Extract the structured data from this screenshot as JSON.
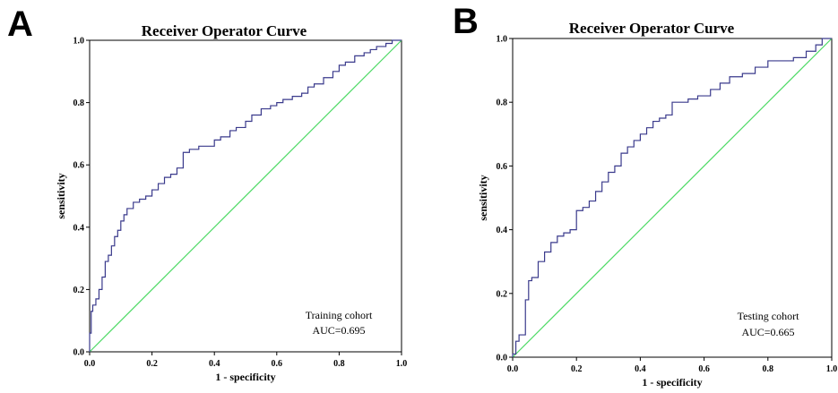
{
  "chart_data": [
    {
      "type": "line",
      "panel": "A",
      "title": "Receiver Operator Curve",
      "xlabel": "1 - specificity",
      "ylabel": "sensitivity",
      "xlim": [
        0,
        1
      ],
      "ylim": [
        0,
        1
      ],
      "xticks": [
        "0.0",
        "0.2",
        "0.4",
        "0.6",
        "0.8",
        "1.0"
      ],
      "yticks": [
        "0.0",
        "0.2",
        "0.4",
        "0.6",
        "0.8",
        "1.0"
      ],
      "annotation": [
        "Training cohort",
        "AUC=0.695"
      ],
      "colors": {
        "roc": "#3a3a8c",
        "reference": "#4cd964"
      },
      "series": [
        {
          "x": [
            0.0,
            0.0,
            0.005,
            0.005,
            0.01,
            0.01,
            0.02,
            0.02,
            0.03,
            0.03,
            0.04,
            0.04,
            0.05,
            0.05,
            0.06,
            0.06,
            0.07,
            0.07,
            0.08,
            0.08,
            0.09,
            0.09,
            0.1,
            0.1,
            0.11,
            0.11,
            0.12,
            0.12,
            0.14,
            0.14,
            0.16,
            0.16,
            0.18,
            0.18,
            0.2,
            0.2,
            0.22,
            0.22,
            0.24,
            0.24,
            0.26,
            0.26,
            0.28,
            0.28,
            0.3,
            0.3,
            0.32,
            0.32,
            0.35,
            0.35,
            0.38,
            0.38,
            0.4,
            0.4,
            0.42,
            0.42,
            0.45,
            0.45,
            0.47,
            0.47,
            0.5,
            0.5,
            0.52,
            0.52,
            0.55,
            0.55,
            0.58,
            0.58,
            0.6,
            0.6,
            0.62,
            0.62,
            0.65,
            0.65,
            0.68,
            0.68,
            0.7,
            0.7,
            0.72,
            0.72,
            0.75,
            0.75,
            0.78,
            0.78,
            0.8,
            0.8,
            0.82,
            0.82,
            0.85,
            0.85,
            0.88,
            0.88,
            0.9,
            0.9,
            0.92,
            0.92,
            0.95,
            0.95,
            0.97,
            0.97,
            1.0,
            1.0
          ],
          "y": [
            0.0,
            0.06,
            0.06,
            0.13,
            0.13,
            0.15,
            0.15,
            0.17,
            0.17,
            0.2,
            0.2,
            0.24,
            0.24,
            0.29,
            0.29,
            0.31,
            0.31,
            0.34,
            0.34,
            0.37,
            0.37,
            0.39,
            0.39,
            0.42,
            0.42,
            0.44,
            0.44,
            0.46,
            0.46,
            0.48,
            0.48,
            0.49,
            0.49,
            0.5,
            0.5,
            0.52,
            0.52,
            0.54,
            0.54,
            0.56,
            0.56,
            0.57,
            0.57,
            0.59,
            0.59,
            0.64,
            0.64,
            0.65,
            0.65,
            0.66,
            0.66,
            0.66,
            0.66,
            0.68,
            0.68,
            0.69,
            0.69,
            0.71,
            0.71,
            0.72,
            0.72,
            0.74,
            0.74,
            0.76,
            0.76,
            0.78,
            0.78,
            0.79,
            0.79,
            0.8,
            0.8,
            0.81,
            0.81,
            0.82,
            0.82,
            0.83,
            0.83,
            0.85,
            0.85,
            0.86,
            0.86,
            0.88,
            0.88,
            0.9,
            0.9,
            0.92,
            0.92,
            0.93,
            0.93,
            0.95,
            0.95,
            0.96,
            0.96,
            0.97,
            0.97,
            0.98,
            0.98,
            0.99,
            0.99,
            1.0,
            1.0,
            1.0
          ]
        },
        {
          "x": [
            0,
            1
          ],
          "y": [
            0,
            1
          ]
        }
      ]
    },
    {
      "type": "line",
      "panel": "B",
      "title": "Receiver Operator Curve",
      "xlabel": "1 - specificity",
      "ylabel": "sensitivity",
      "xlim": [
        0,
        1
      ],
      "ylim": [
        0,
        1
      ],
      "xticks": [
        "0.0",
        "0.2",
        "0.4",
        "0.6",
        "0.8",
        "1.0"
      ],
      "yticks": [
        "0.0",
        "0.2",
        "0.4",
        "0.6",
        "0.8",
        "1.0"
      ],
      "annotation": [
        "Testing cohort",
        "AUC=0.665"
      ],
      "colors": {
        "roc": "#3a3a8c",
        "reference": "#4cd964"
      },
      "series": [
        {
          "x": [
            0.0,
            0.0,
            0.01,
            0.01,
            0.02,
            0.02,
            0.04,
            0.04,
            0.05,
            0.05,
            0.06,
            0.06,
            0.08,
            0.08,
            0.1,
            0.1,
            0.12,
            0.12,
            0.14,
            0.14,
            0.16,
            0.16,
            0.18,
            0.18,
            0.2,
            0.2,
            0.22,
            0.22,
            0.24,
            0.24,
            0.26,
            0.26,
            0.28,
            0.28,
            0.3,
            0.3,
            0.32,
            0.32,
            0.34,
            0.34,
            0.36,
            0.36,
            0.38,
            0.38,
            0.4,
            0.4,
            0.42,
            0.42,
            0.44,
            0.44,
            0.46,
            0.46,
            0.48,
            0.48,
            0.5,
            0.5,
            0.52,
            0.52,
            0.55,
            0.55,
            0.58,
            0.58,
            0.62,
            0.62,
            0.65,
            0.65,
            0.68,
            0.68,
            0.72,
            0.72,
            0.76,
            0.76,
            0.8,
            0.8,
            0.84,
            0.84,
            0.88,
            0.88,
            0.92,
            0.92,
            0.95,
            0.95,
            0.97,
            0.97,
            1.0,
            1.0
          ],
          "y": [
            0.0,
            0.01,
            0.01,
            0.05,
            0.05,
            0.07,
            0.07,
            0.18,
            0.18,
            0.24,
            0.24,
            0.25,
            0.25,
            0.3,
            0.3,
            0.33,
            0.33,
            0.36,
            0.36,
            0.38,
            0.38,
            0.39,
            0.39,
            0.4,
            0.4,
            0.46,
            0.46,
            0.47,
            0.47,
            0.49,
            0.49,
            0.52,
            0.52,
            0.55,
            0.55,
            0.58,
            0.58,
            0.6,
            0.6,
            0.64,
            0.64,
            0.66,
            0.66,
            0.68,
            0.68,
            0.7,
            0.7,
            0.72,
            0.72,
            0.74,
            0.74,
            0.75,
            0.75,
            0.76,
            0.76,
            0.8,
            0.8,
            0.8,
            0.8,
            0.81,
            0.81,
            0.82,
            0.82,
            0.84,
            0.84,
            0.86,
            0.86,
            0.88,
            0.88,
            0.89,
            0.89,
            0.91,
            0.91,
            0.93,
            0.93,
            0.93,
            0.93,
            0.94,
            0.94,
            0.96,
            0.96,
            0.98,
            0.98,
            1.0,
            1.0,
            1.0
          ]
        },
        {
          "x": [
            0,
            1
          ],
          "y": [
            0,
            1
          ]
        }
      ]
    }
  ]
}
